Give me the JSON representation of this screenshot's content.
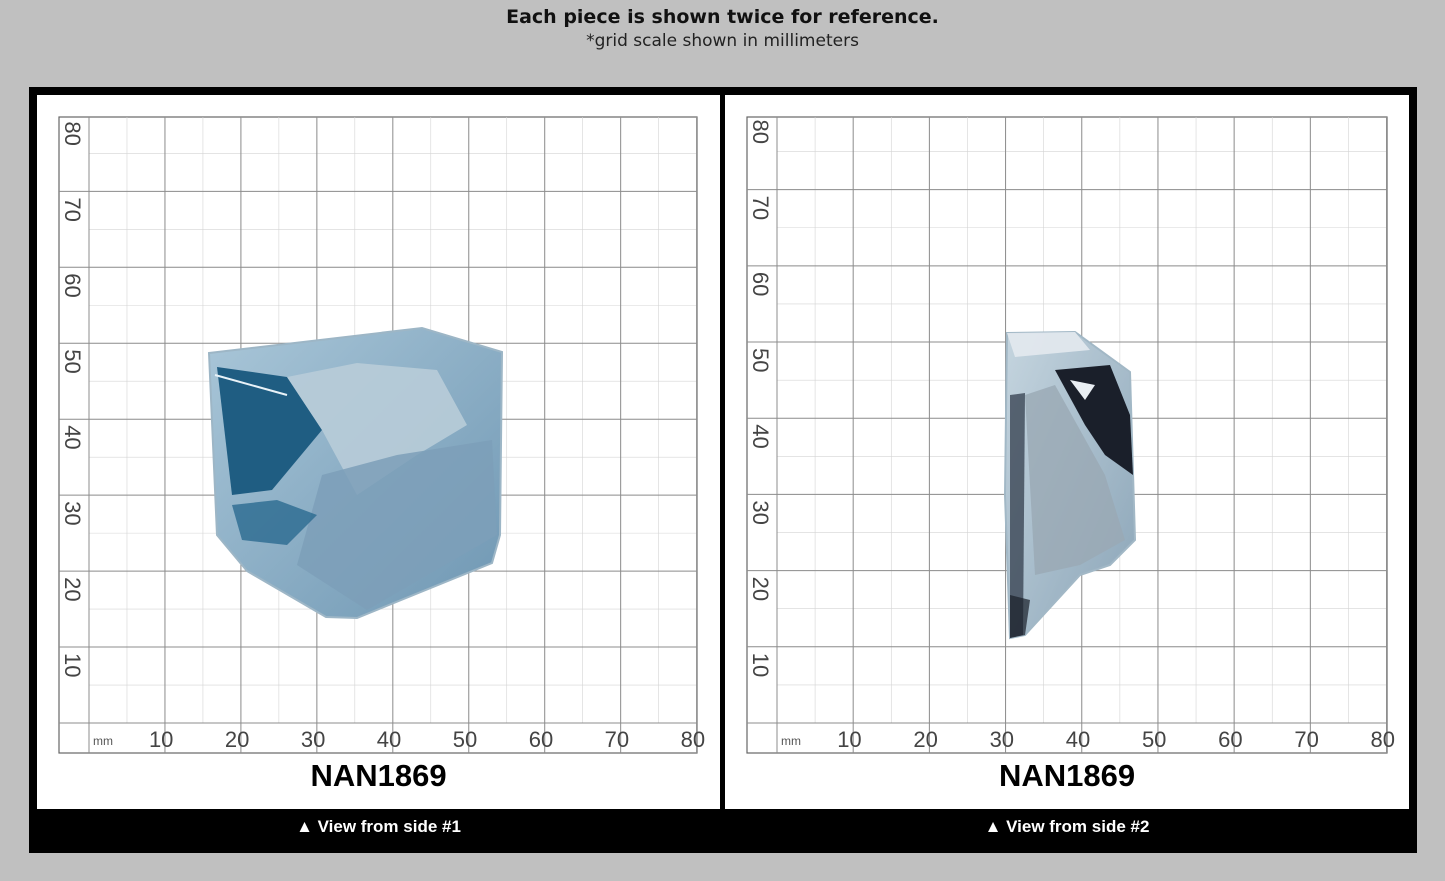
{
  "header": {
    "title": "Each piece is shown twice for reference.",
    "subtitle": "*grid scale shown in millimeters"
  },
  "grid": {
    "unit": "mm",
    "x_ticks": [
      "10",
      "20",
      "30",
      "40",
      "50",
      "60",
      "70",
      "80"
    ],
    "y_ticks": [
      "80",
      "70",
      "60",
      "50",
      "40",
      "30",
      "20",
      "10"
    ]
  },
  "views": [
    {
      "sample_id": "NAN1869",
      "caption": "▲ View from side #1"
    },
    {
      "sample_id": "NAN1869",
      "caption": "▲ View from side #2"
    }
  ],
  "colors": {
    "background": "#c0c0c0",
    "frame": "#000000",
    "panel": "#ffffff",
    "grid_line": "#8c8c8c",
    "stone_blue": "#1f5d82",
    "stone_frost": "#8fb4cc"
  }
}
